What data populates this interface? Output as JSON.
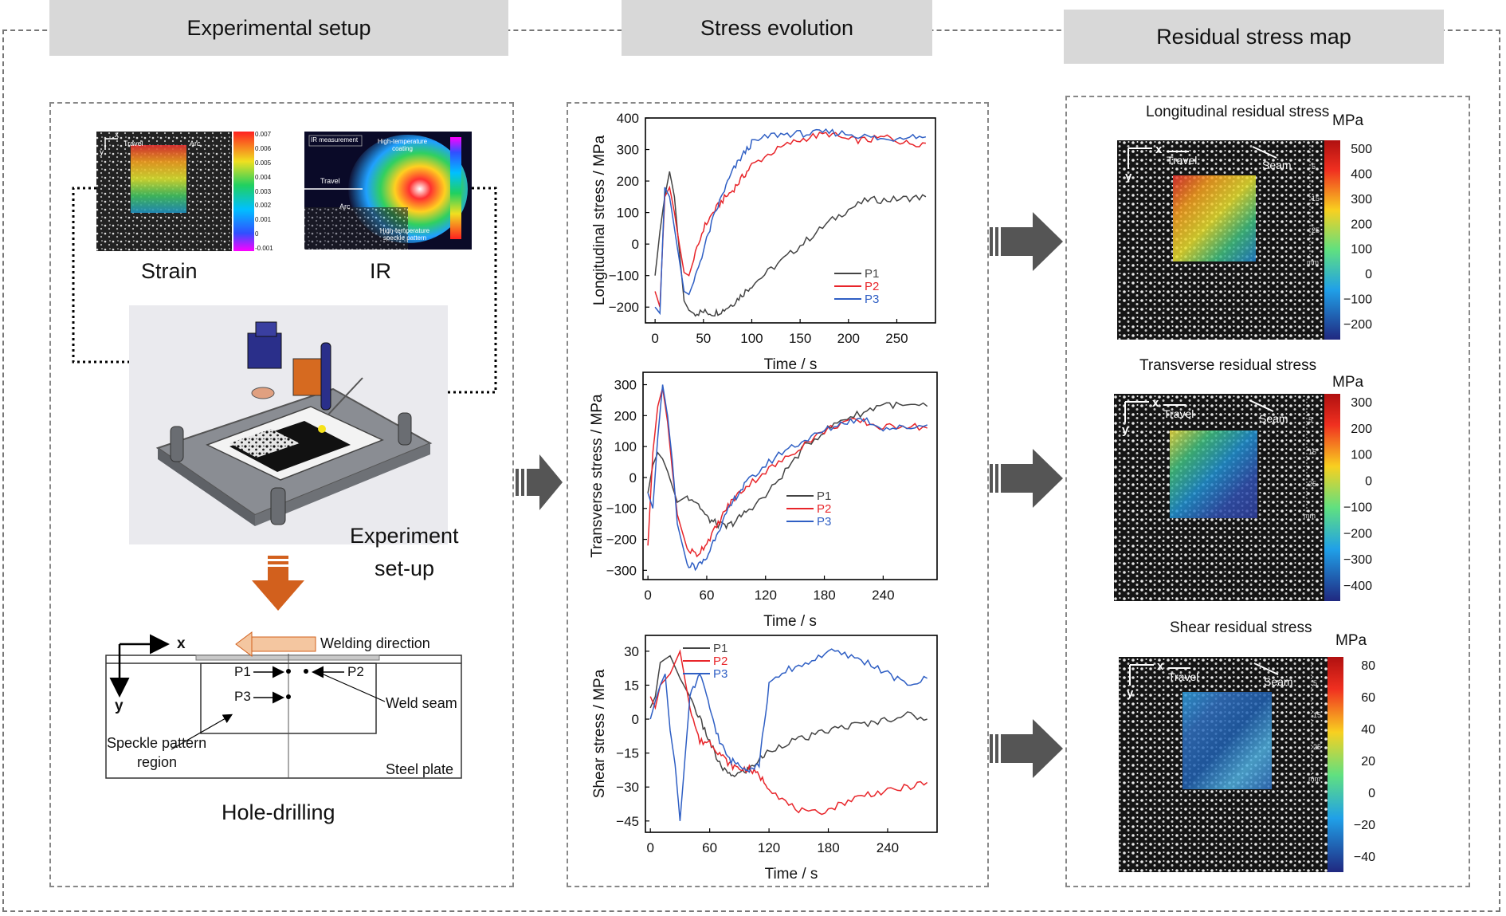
{
  "headers": {
    "setup": "Experimental setup",
    "evolution": "Stress evolution",
    "residual": "Residual stress map"
  },
  "setup": {
    "strain_caption": "Strain",
    "ir_caption": "IR",
    "strain_thumb": {
      "x_axis": "x",
      "y_axis": "y",
      "travel": "Travel",
      "arc": "Arc",
      "scale": [
        "0.007",
        "0.006",
        "0.005",
        "0.004",
        "0.003",
        "0.002",
        "0.001",
        "0",
        "-0.001"
      ]
    },
    "ir_thumb": {
      "title": "IR measurement",
      "coating": "High-temperature coating",
      "travel": "Travel",
      "arc": "Arc",
      "speckle": "High-temperature speckle pattern"
    },
    "experiment_label_1": "Experiment",
    "experiment_label_2": "set-up",
    "hole_caption": "Hole-drilling",
    "schematic": {
      "x_axis": "x",
      "y_axis": "y",
      "welding_direction": "Welding direction",
      "p1": "P1",
      "p2": "P2",
      "p3": "P3",
      "weld_seam": "Weld seam",
      "speckle_region_1": "Speckle pattern",
      "speckle_region_2": "region",
      "steel_plate": "Steel plate"
    }
  },
  "colors": {
    "p1": "#444444",
    "p2": "#e8252a",
    "p3": "#2f5fc4",
    "arrow_gray": "#555555",
    "arrow_orange": "#d2601d"
  },
  "chart_data": [
    {
      "type": "line",
      "ylabel": "Longitudinal stress / MPa",
      "xlabel": "Time / s",
      "xlim": [
        -10,
        290
      ],
      "ylim": [
        -250,
        400
      ],
      "xticks": [
        "0",
        "50",
        "100",
        "150",
        "200",
        "250"
      ],
      "yticks": [
        "400",
        "300",
        "200",
        "100",
        "0",
        "−100",
        "−200"
      ],
      "legend": [
        "P1",
        "P2",
        "P3"
      ],
      "legend_position": "bottom-right",
      "series": [
        {
          "name": "P1",
          "x": [
            0,
            5,
            10,
            15,
            20,
            25,
            30,
            35,
            40,
            50,
            60,
            70,
            80,
            90,
            100,
            120,
            140,
            160,
            180,
            200,
            220,
            240,
            260,
            280
          ],
          "y": [
            -100,
            40,
            150,
            230,
            150,
            -20,
            -180,
            -210,
            -220,
            -215,
            -220,
            -210,
            -190,
            -160,
            -130,
            -80,
            -30,
            20,
            70,
            110,
            140,
            140,
            145,
            150
          ]
        },
        {
          "name": "P2",
          "x": [
            0,
            5,
            10,
            15,
            20,
            25,
            30,
            35,
            40,
            50,
            60,
            70,
            80,
            90,
            100,
            120,
            140,
            160,
            180,
            200,
            220,
            240,
            260,
            280
          ],
          "y": [
            -150,
            -200,
            150,
            180,
            100,
            0,
            -90,
            -100,
            -50,
            50,
            100,
            140,
            170,
            210,
            250,
            290,
            320,
            340,
            350,
            330,
            330,
            340,
            320,
            320
          ]
        },
        {
          "name": "P3",
          "x": [
            0,
            5,
            10,
            15,
            20,
            25,
            30,
            35,
            40,
            50,
            60,
            70,
            80,
            90,
            100,
            120,
            140,
            160,
            180,
            200,
            220,
            240,
            260,
            280
          ],
          "y": [
            -200,
            -220,
            180,
            150,
            50,
            -50,
            -150,
            -160,
            -120,
            -20,
            80,
            160,
            230,
            280,
            320,
            345,
            350,
            350,
            355,
            350,
            340,
            330,
            345,
            340
          ]
        }
      ]
    },
    {
      "type": "line",
      "ylabel": "Transverse stress / MPa",
      "xlabel": "Time / s",
      "xlim": [
        -5,
        295
      ],
      "ylim": [
        -330,
        340
      ],
      "xticks": [
        "0",
        "60",
        "120",
        "180",
        "240"
      ],
      "yticks": [
        "300",
        "200",
        "100",
        "0",
        "−100",
        "−200",
        "−300"
      ],
      "legend": [
        "P1",
        "P2",
        "P3"
      ],
      "legend_position": "center-right",
      "series": [
        {
          "name": "P1",
          "x": [
            0,
            5,
            10,
            15,
            20,
            25,
            30,
            40,
            50,
            60,
            70,
            80,
            90,
            100,
            120,
            140,
            160,
            180,
            200,
            220,
            240,
            260,
            285
          ],
          "y": [
            -50,
            40,
            80,
            60,
            20,
            -30,
            -80,
            -60,
            -80,
            -130,
            -150,
            -160,
            -140,
            -110,
            -60,
            20,
            100,
            150,
            190,
            210,
            240,
            230,
            230
          ]
        },
        {
          "name": "P2",
          "x": [
            0,
            5,
            10,
            15,
            20,
            25,
            30,
            40,
            50,
            60,
            70,
            80,
            90,
            100,
            120,
            140,
            160,
            180,
            200,
            220,
            240,
            260,
            285
          ],
          "y": [
            -220,
            80,
            230,
            290,
            180,
            20,
            -120,
            -230,
            -250,
            -210,
            -160,
            -100,
            -60,
            -30,
            20,
            60,
            110,
            150,
            180,
            180,
            160,
            170,
            160
          ]
        },
        {
          "name": "P3",
          "x": [
            0,
            5,
            10,
            15,
            20,
            25,
            30,
            40,
            50,
            60,
            70,
            80,
            90,
            100,
            120,
            140,
            160,
            180,
            200,
            220,
            240,
            260,
            285
          ],
          "y": [
            -50,
            -100,
            130,
            300,
            200,
            50,
            -150,
            -280,
            -290,
            -260,
            -180,
            -120,
            -60,
            -20,
            40,
            90,
            120,
            150,
            180,
            190,
            160,
            160,
            170
          ]
        }
      ]
    },
    {
      "type": "line",
      "ylabel": "Shear stress / MPa",
      "xlabel": "Time / s",
      "xlim": [
        -5,
        290
      ],
      "ylim": [
        -50,
        37
      ],
      "xticks": [
        "0",
        "60",
        "120",
        "180",
        "240"
      ],
      "yticks": [
        "30",
        "15",
        "0",
        "−15",
        "−30",
        "−45"
      ],
      "legend": [
        "P1",
        "P2",
        "P3"
      ],
      "legend_position": "top-left",
      "series": [
        {
          "name": "P1",
          "x": [
            0,
            5,
            10,
            20,
            30,
            40,
            50,
            60,
            70,
            80,
            90,
            100,
            110,
            120,
            140,
            160,
            180,
            200,
            220,
            240,
            260,
            280
          ],
          "y": [
            5,
            10,
            25,
            28,
            18,
            10,
            0,
            -10,
            -20,
            -25,
            -24,
            -22,
            -18,
            -14,
            -10,
            -8,
            -5,
            -3,
            -2,
            0,
            2,
            0
          ]
        },
        {
          "name": "P2",
          "x": [
            0,
            5,
            10,
            20,
            30,
            40,
            50,
            60,
            70,
            80,
            90,
            100,
            110,
            120,
            140,
            160,
            180,
            200,
            220,
            240,
            260,
            280
          ],
          "y": [
            10,
            5,
            15,
            20,
            30,
            5,
            -10,
            -10,
            -15,
            -20,
            -22,
            -22,
            -25,
            -30,
            -38,
            -42,
            -40,
            -36,
            -33,
            -32,
            -30,
            -28
          ]
        },
        {
          "name": "P3",
          "x": [
            0,
            5,
            10,
            15,
            20,
            25,
            30,
            40,
            50,
            60,
            70,
            80,
            90,
            100,
            110,
            120,
            140,
            160,
            180,
            200,
            220,
            240,
            260,
            280
          ],
          "y": [
            0,
            8,
            15,
            20,
            -5,
            -20,
            -45,
            10,
            20,
            5,
            -10,
            -18,
            -20,
            -22,
            -20,
            15,
            22,
            25,
            30,
            28,
            25,
            20,
            15,
            18
          ]
        }
      ]
    }
  ],
  "residual": {
    "unit": "MPa",
    "maps": [
      {
        "title": "Longitudinal residual stress",
        "scale": [
          "500",
          "400",
          "300",
          "200",
          "100",
          "0",
          "−100",
          "−200"
        ]
      },
      {
        "title": "Transverse residual stress",
        "scale": [
          "300",
          "200",
          "100",
          "0",
          "−100",
          "−200",
          "−300",
          "−400"
        ]
      },
      {
        "title": "Shear residual stress",
        "scale": [
          "80",
          "60",
          "40",
          "20",
          "0",
          "−20",
          "−40"
        ]
      }
    ],
    "image_labels": {
      "x_axis": "x",
      "y_axis": "y",
      "travel": "Travel",
      "seam": "Seam",
      "ruler": [
        "5",
        "15",
        "25",
        "mm"
      ]
    }
  }
}
